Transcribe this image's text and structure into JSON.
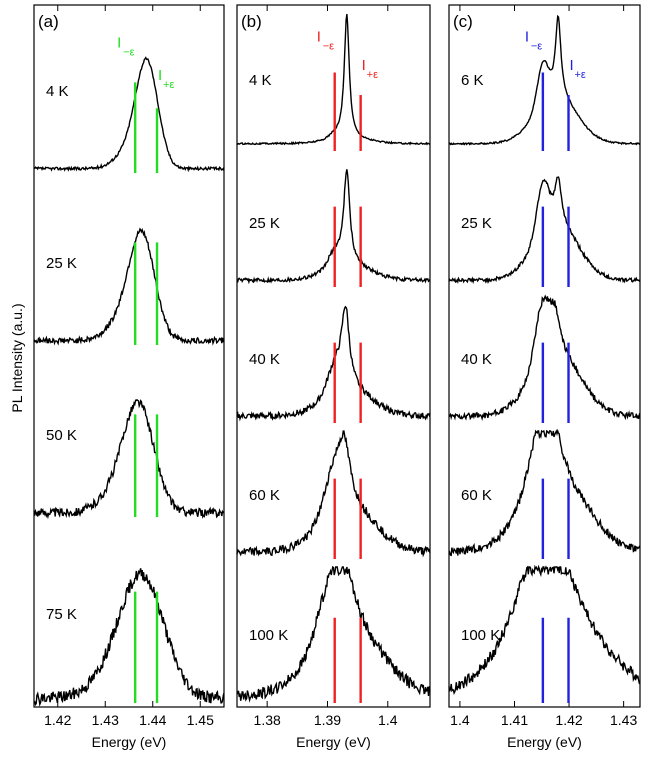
{
  "figure": {
    "ylabel": "PL Intensity (a.u.)"
  },
  "chart_data": [
    {
      "type": "line",
      "panel_label": "(a)",
      "xlabel": "Energy (eV)",
      "xlim": [
        1.415,
        1.455
      ],
      "xticks": [
        1.42,
        1.43,
        1.44,
        1.45
      ],
      "grid": false,
      "marker_color": "#22dd22",
      "markers": [
        {
          "label": "I",
          "sub": "−ε",
          "energy": 1.4363
        },
        {
          "label": "I",
          "sub": "+ε",
          "energy": 1.4409
        }
      ],
      "series": [
        {
          "temp_label": "4 K",
          "center": 1.4388,
          "width": 0.0033,
          "shoulder": 0.6
        },
        {
          "temp_label": "25 K",
          "center": 1.4378,
          "width": 0.0038,
          "shoulder": 0.8
        },
        {
          "temp_label": "50 K",
          "center": 1.4372,
          "width": 0.0045,
          "shoulder": 0.9
        },
        {
          "temp_label": "75 K",
          "center": 1.438,
          "width": 0.0065,
          "shoulder": 1.0
        }
      ]
    },
    {
      "type": "line",
      "panel_label": "(b)",
      "xlabel": "Energy (eV)",
      "xlim": [
        1.375,
        1.407
      ],
      "xticks": [
        1.38,
        1.39,
        1.4
      ],
      "grid": false,
      "marker_color": "#ee2222",
      "markers": [
        {
          "label": "I",
          "sub": "−ε",
          "energy": 1.3912
        },
        {
          "label": "I",
          "sub": "+ε",
          "energy": 1.3955
        }
      ],
      "series": [
        {
          "temp_label": "4 K",
          "center": 1.3932,
          "width": 0.0005,
          "shoulder": 0.05
        },
        {
          "temp_label": "25 K",
          "center": 1.3932,
          "width": 0.0006,
          "shoulder": 0.2
        },
        {
          "temp_label": "40 K",
          "center": 1.393,
          "width": 0.0008,
          "shoulder": 0.35
        },
        {
          "temp_label": "60 K",
          "center": 1.3928,
          "width": 0.0012,
          "shoulder": 0.6
        },
        {
          "temp_label": "100 K",
          "center": 1.393,
          "width": 0.002,
          "shoulder": 0.85
        }
      ]
    },
    {
      "type": "line",
      "panel_label": "(c)",
      "xlabel": "Energy (eV)",
      "xlim": [
        1.398,
        1.433
      ],
      "xticks": [
        1.4,
        1.41,
        1.42,
        1.43
      ],
      "grid": false,
      "marker_color": "#2222dd",
      "markers": [
        {
          "label": "I",
          "sub": "−ε",
          "energy": 1.4152
        },
        {
          "label": "I",
          "sub": "+ε",
          "energy": 1.4199
        }
      ],
      "series": [
        {
          "temp_label": "6 K",
          "center": 1.418,
          "width": 0.0006,
          "shoulder": 0.55
        },
        {
          "temp_label": "25 K",
          "center": 1.418,
          "width": 0.0007,
          "shoulder": 0.75
        },
        {
          "temp_label": "40 K",
          "center": 1.4175,
          "width": 0.001,
          "shoulder": 0.85
        },
        {
          "temp_label": "60 K",
          "center": 1.417,
          "width": 0.002,
          "shoulder": 0.95
        },
        {
          "temp_label": "100 K",
          "center": 1.417,
          "width": 0.004,
          "shoulder": 1.0
        }
      ]
    }
  ]
}
